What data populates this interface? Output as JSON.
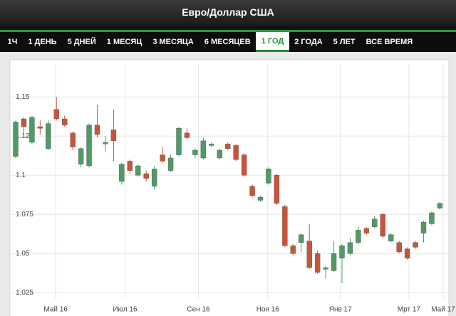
{
  "header": {
    "title": "Евро/Доллар США"
  },
  "tabs": [
    "1Ч",
    "1 ДЕНЬ",
    "5 ДНЕЙ",
    "1 МЕСЯЦ",
    "3 МЕСЯЦА",
    "6 МЕСЯЦЕВ",
    "1 ГОД",
    "2 ГОДА",
    "5 ЛЕТ",
    "ВСЕ ВРЕМЯ"
  ],
  "active_tab": 6,
  "chart_data": {
    "type": "candlestick",
    "categories": [
      null,
      null,
      null,
      null,
      null,
      null,
      null,
      null,
      null,
      null,
      null,
      null,
      null,
      null,
      null,
      null,
      null,
      null,
      null,
      null,
      null,
      null,
      null,
      null,
      null,
      null,
      null,
      null,
      null,
      null,
      null,
      null,
      null,
      null,
      null,
      null,
      null,
      null,
      null,
      null,
      null,
      null,
      null,
      null,
      null,
      null,
      null,
      null,
      null,
      null,
      null,
      null,
      null
    ],
    "open": [
      1.112,
      1.136,
      1.121,
      1.131,
      1.117,
      1.142,
      1.136,
      1.127,
      1.107,
      1.106,
      1.132,
      1.12,
      1.129,
      1.096,
      1.109,
      1.1,
      1.101,
      1.093,
      1.113,
      1.103,
      1.113,
      1.127,
      1.113,
      1.111,
      1.119,
      1.111,
      1.12,
      1.119,
      1.113,
      1.093,
      1.084,
      1.095,
      1.1,
      1.08,
      1.055,
      1.057,
      1.058,
      1.05,
      1.04,
      1.039,
      1.047,
      1.05,
      1.057,
      1.066,
      1.067,
      1.075,
      1.058,
      1.057,
      1.053,
      1.057,
      1.063,
      1.069,
      1.079
    ],
    "high": [
      1.135,
      1.137,
      1.138,
      1.135,
      1.135,
      1.15,
      1.138,
      1.128,
      1.118,
      1.133,
      1.145,
      1.125,
      1.142,
      1.108,
      1.11,
      1.107,
      1.103,
      1.106,
      1.118,
      1.113,
      1.131,
      1.13,
      1.117,
      1.124,
      1.121,
      1.117,
      1.121,
      1.12,
      1.114,
      1.094,
      1.087,
      1.105,
      1.101,
      1.081,
      1.056,
      1.063,
      1.069,
      1.052,
      1.042,
      1.058,
      1.056,
      1.06,
      1.067,
      1.067,
      1.074,
      1.076,
      1.063,
      1.058,
      1.054,
      1.058,
      1.071,
      1.077,
      1.083
    ],
    "low": [
      1.111,
      1.126,
      1.12,
      1.126,
      1.116,
      1.135,
      1.131,
      1.116,
      1.105,
      1.105,
      1.124,
      1.115,
      1.109,
      1.094,
      1.101,
      1.099,
      1.096,
      1.091,
      1.108,
      1.102,
      1.112,
      1.123,
      1.111,
      1.11,
      1.118,
      1.11,
      1.116,
      1.109,
      1.099,
      1.086,
      1.083,
      1.094,
      1.081,
      1.054,
      1.049,
      1.051,
      1.04,
      1.037,
      1.034,
      1.038,
      1.031,
      1.049,
      1.056,
      1.062,
      1.066,
      1.06,
      1.057,
      1.05,
      1.046,
      1.053,
      1.057,
      1.068,
      1.078
    ],
    "close": [
      1.134,
      1.131,
      1.137,
      1.13,
      1.133,
      1.136,
      1.132,
      1.118,
      1.117,
      1.132,
      1.126,
      1.121,
      1.122,
      1.107,
      1.103,
      1.106,
      1.098,
      1.104,
      1.109,
      1.111,
      1.13,
      1.124,
      1.116,
      1.122,
      1.12,
      1.116,
      1.117,
      1.11,
      1.1,
      1.087,
      1.086,
      1.104,
      1.082,
      1.055,
      1.05,
      1.062,
      1.041,
      1.038,
      1.041,
      1.05,
      1.055,
      1.057,
      1.065,
      1.063,
      1.072,
      1.061,
      1.062,
      1.051,
      1.047,
      1.054,
      1.07,
      1.076,
      1.082
    ],
    "up_color": "#4f9a67",
    "down_color": "#c9543a",
    "ylim": [
      1.021,
      1.171
    ],
    "yticks": [
      1.025,
      1.05,
      1.075,
      1.1,
      1.125,
      1.15
    ],
    "xticks": [
      {
        "value": 4.9,
        "label": "Май 16"
      },
      {
        "value": 13.4,
        "label": "Июл 16"
      },
      {
        "value": 22.4,
        "label": "Сен 16"
      },
      {
        "value": 30.9,
        "label": "Ноя 16"
      },
      {
        "value": 39.8,
        "label": "Янв 17"
      },
      {
        "value": 48.2,
        "label": "Мрт 17"
      },
      {
        "value": 52.4,
        "label": "Май 17"
      }
    ],
    "grid": true
  }
}
